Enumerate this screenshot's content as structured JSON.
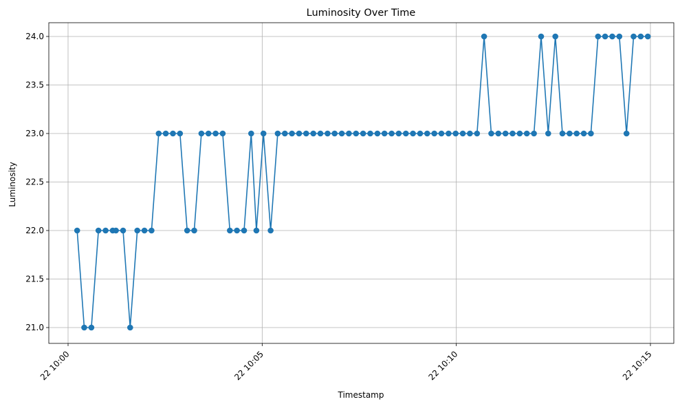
{
  "chart_data": {
    "type": "line",
    "title": "Luminosity Over Time",
    "xlabel": "Timestamp",
    "ylabel": "Luminosity",
    "xlim": [
      "22 10:00",
      "22 10:15"
    ],
    "ylim": [
      20.85,
      24.15
    ],
    "x_tick_labels": [
      "22 10:00",
      "22 10:05",
      "22 10:10",
      "22 10:15"
    ],
    "y_tick_labels": [
      "21.0",
      "21.5",
      "22.0",
      "22.5",
      "23.0",
      "23.5",
      "24.0"
    ],
    "grid": true,
    "marker": "circle",
    "line_color": "#1f77b4",
    "series": [
      {
        "x": [
          "10:00:14",
          "10:00:25",
          "10:00:36",
          "10:00:47",
          "10:00:58",
          "10:01:09",
          "10:01:14",
          "10:01:25",
          "10:01:36",
          "10:01:47",
          "10:01:58",
          "10:02:09",
          "10:02:20",
          "10:02:31",
          "10:02:42",
          "10:02:53",
          "10:03:04",
          "10:03:15",
          "10:03:26",
          "10:03:37",
          "10:03:48",
          "10:03:59",
          "10:04:10",
          "10:04:21",
          "10:04:32",
          "10:04:43",
          "10:04:51",
          "10:05:02",
          "10:05:13",
          "10:05:24",
          "10:05:35",
          "10:05:46",
          "10:05:57",
          "10:06:08",
          "10:06:19",
          "10:06:30",
          "10:06:41",
          "10:06:52",
          "10:07:03",
          "10:07:14",
          "10:07:25",
          "10:07:36",
          "10:07:47",
          "10:07:58",
          "10:08:09",
          "10:08:20",
          "10:08:31",
          "10:08:42",
          "10:08:53",
          "10:09:04",
          "10:09:15",
          "10:09:26",
          "10:09:37",
          "10:09:48",
          "10:09:59",
          "10:10:10",
          "10:10:21",
          "10:10:32",
          "10:10:43",
          "10:10:54",
          "10:11:05",
          "10:11:16",
          "10:11:27",
          "10:11:38",
          "10:11:49",
          "10:12:00",
          "10:12:11",
          "10:12:22",
          "10:12:33",
          "10:12:44",
          "10:12:55",
          "10:13:06",
          "10:13:17",
          "10:13:28",
          "10:13:39",
          "10:13:50",
          "10:14:01",
          "10:14:12",
          "10:14:23",
          "10:14:34",
          "10:14:45",
          "10:14:56"
        ],
        "y": [
          22,
          21,
          21,
          22,
          22,
          22,
          22,
          22,
          21,
          22,
          22,
          22,
          23,
          23,
          23,
          23,
          22,
          22,
          23,
          23,
          23,
          23,
          22,
          22,
          22,
          23,
          22,
          23,
          22,
          23,
          23,
          23,
          23,
          23,
          23,
          23,
          23,
          23,
          23,
          23,
          23,
          23,
          23,
          23,
          23,
          23,
          23,
          23,
          23,
          23,
          23,
          23,
          23,
          23,
          23,
          23,
          23,
          23,
          24,
          23,
          23,
          23,
          23,
          23,
          23,
          23,
          24,
          23,
          24,
          23,
          23,
          23,
          23,
          23,
          24,
          24,
          24,
          24,
          23,
          24,
          24,
          24
        ]
      }
    ]
  }
}
